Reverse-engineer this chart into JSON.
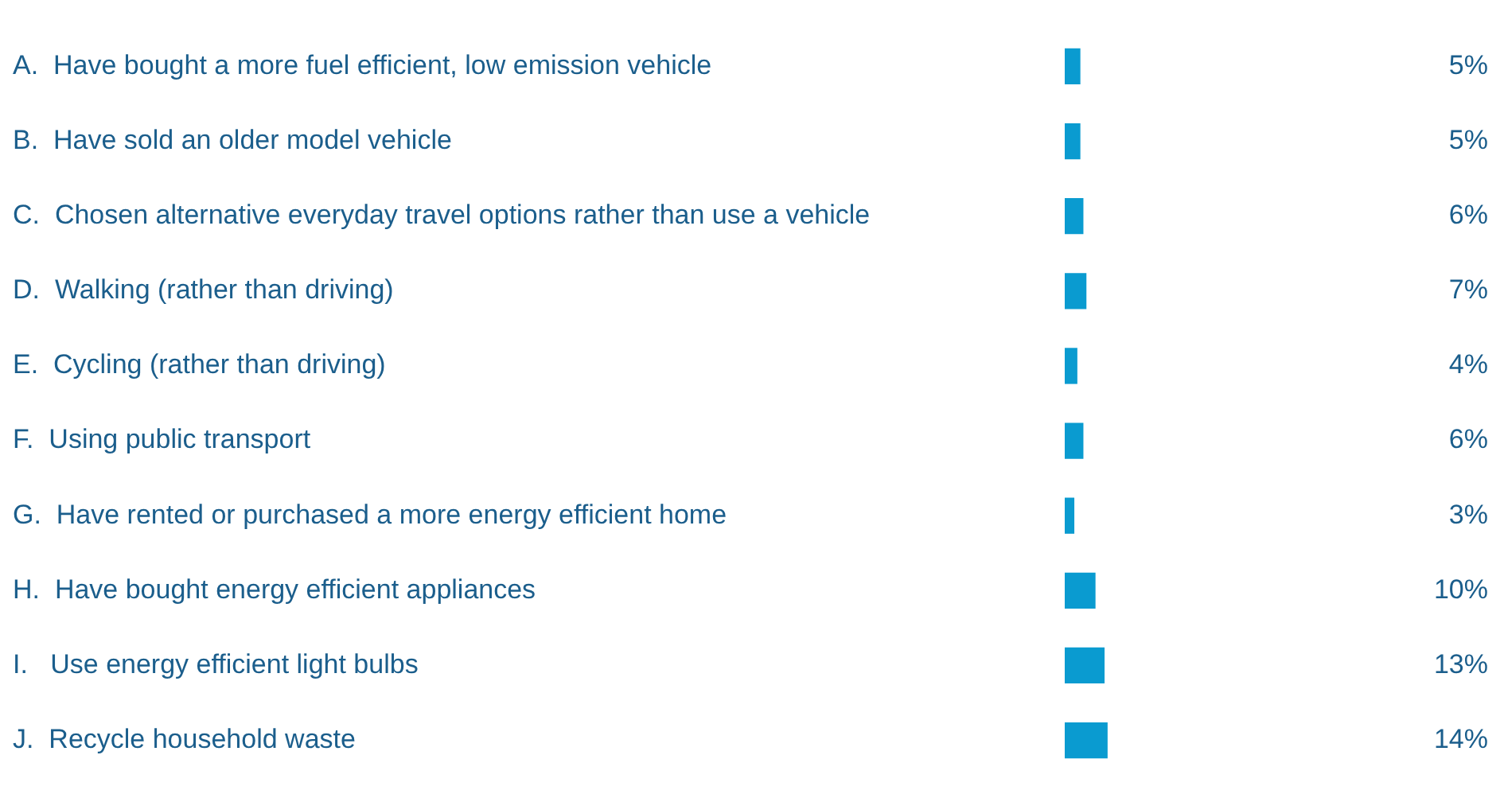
{
  "chart_data": {
    "type": "bar",
    "orientation": "horizontal",
    "categories": [
      "A.  Have bought a more fuel efficient, low emission vehicle",
      "B.  Have sold an older model vehicle",
      "C.  Chosen alternative everyday travel options rather than use a vehicle",
      "D.  Walking (rather than driving)",
      "E.  Cycling (rather than driving)",
      "F.  Using public transport",
      "G.  Have rented or purchased a more energy efficient home",
      "H.  Have bought energy efficient appliances",
      "I.   Use energy efficient light bulbs",
      "J.  Recycle household waste"
    ],
    "values": [
      5,
      5,
      6,
      7,
      4,
      6,
      3,
      10,
      13,
      14
    ],
    "value_labels": [
      "5%",
      "5%",
      "6%",
      "7%",
      "4%",
      "6%",
      "3%",
      "10%",
      "13%",
      "14%"
    ],
    "color": "#0a9bd0",
    "tick_labels": "y"
  }
}
